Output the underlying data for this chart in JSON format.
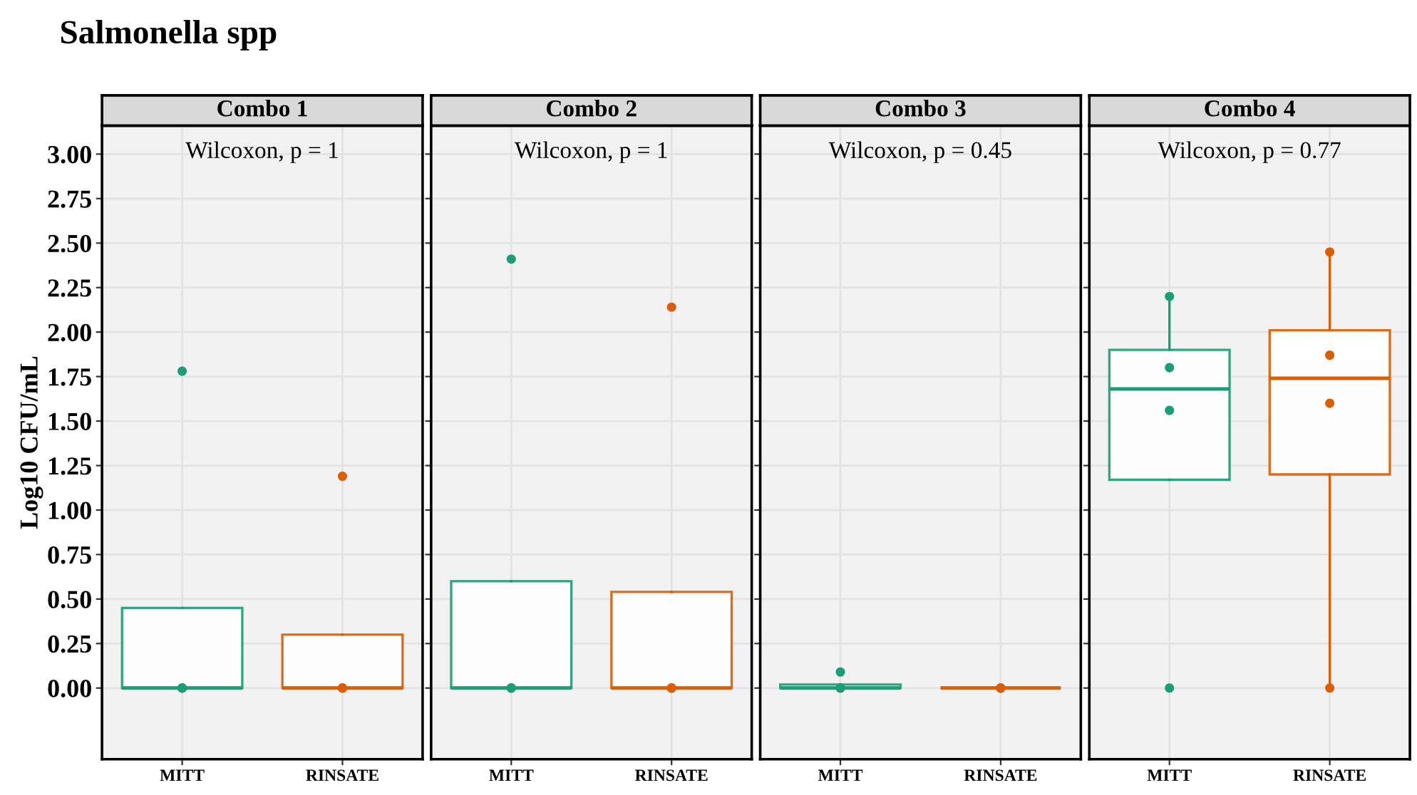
{
  "chart_data": [
    {
      "type": "box",
      "title": "Salmonella spp",
      "subtitle": "Combo 1",
      "ylabel": "Log10 CFU/mL",
      "annotations": [
        "Wilcoxon, p = 1"
      ],
      "categories": [
        "MITT",
        "RINSATE"
      ],
      "ylim": [
        -0.4,
        3.16
      ],
      "yticks": [
        {
          "value": 0,
          "label": "0.00"
        },
        {
          "value": 0.25,
          "label": "0.25"
        },
        {
          "value": 0.5,
          "label": "0.50"
        },
        {
          "value": 0.75,
          "label": "0.75"
        },
        {
          "value": 1,
          "label": "1.00"
        },
        {
          "value": 1.25,
          "label": "1.25"
        },
        {
          "value": 1.5,
          "label": "1.50"
        },
        {
          "value": 1.75,
          "label": "1.75"
        },
        {
          "value": 2,
          "label": "2.00"
        },
        {
          "value": 2.25,
          "label": "2.25"
        },
        {
          "value": 2.5,
          "label": "2.50"
        },
        {
          "value": 2.75,
          "label": "2.75"
        },
        {
          "value": 3,
          "label": "3.00"
        }
      ],
      "grid": true,
      "colors": [
        "#1b9e77",
        "#d95f02"
      ],
      "boxes": [
        {
          "low": 0,
          "q1": 0,
          "median": 0,
          "q3": 0.45,
          "high": 0.45
        },
        {
          "low": 0,
          "q1": 0,
          "median": 0,
          "q3": 0.3,
          "high": 0.3
        }
      ],
      "series": [
        {
          "type": "scatter",
          "color": "#1b9e77",
          "x": [
            "MITT",
            "MITT",
            "MITT",
            "MITT"
          ],
          "values": [
            0,
            0,
            0,
            1.78
          ]
        },
        {
          "type": "scatter",
          "color": "#d95f02",
          "x": [
            "RINSATE",
            "RINSATE",
            "RINSATE",
            "RINSATE"
          ],
          "values": [
            0,
            0,
            0,
            1.19
          ]
        }
      ]
    },
    {
      "type": "box",
      "subtitle": "Combo 2",
      "annotations": [
        "Wilcoxon, p = 1"
      ],
      "categories": [
        "MITT",
        "RINSATE"
      ],
      "ylim": [
        -0.4,
        3.16
      ],
      "tick_labels": "x",
      "grid": true,
      "colors": [
        "#1b9e77",
        "#d95f02"
      ],
      "boxes": [
        {
          "low": 0,
          "q1": 0,
          "median": 0,
          "q3": 0.6,
          "high": 0.6
        },
        {
          "low": 0,
          "q1": 0,
          "median": 0,
          "q3": 0.54,
          "high": 0.54
        }
      ],
      "series": [
        {
          "type": "scatter",
          "color": "#1b9e77",
          "x": [
            "MITT",
            "MITT",
            "MITT",
            "MITT"
          ],
          "values": [
            0,
            0,
            0,
            2.41
          ]
        },
        {
          "type": "scatter",
          "color": "#d95f02",
          "x": [
            "RINSATE",
            "RINSATE",
            "RINSATE",
            "RINSATE"
          ],
          "values": [
            0,
            0,
            0,
            2.14
          ]
        }
      ]
    },
    {
      "type": "box",
      "subtitle": "Combo 3",
      "annotations": [
        "Wilcoxon, p = 0.45"
      ],
      "categories": [
        "MITT",
        "RINSATE"
      ],
      "ylim": [
        -0.4,
        3.16
      ],
      "tick_labels": "x",
      "grid": true,
      "colors": [
        "#1b9e77",
        "#d95f02"
      ],
      "boxes": [
        {
          "low": 0,
          "q1": 0,
          "median": 0,
          "q3": 0.02,
          "high": 0.02
        },
        {
          "low": 0,
          "q1": 0,
          "median": 0,
          "q3": 0,
          "high": 0
        }
      ],
      "series": [
        {
          "type": "scatter",
          "color": "#1b9e77",
          "x": [
            "MITT",
            "MITT",
            "MITT",
            "MITT"
          ],
          "values": [
            0,
            0,
            0,
            0.09
          ]
        },
        {
          "type": "scatter",
          "color": "#d95f02",
          "x": [
            "RINSATE",
            "RINSATE",
            "RINSATE",
            "RINSATE"
          ],
          "values": [
            0,
            0,
            0,
            0
          ]
        }
      ]
    },
    {
      "type": "box",
      "subtitle": "Combo 4",
      "annotations": [
        "Wilcoxon, p = 0.77"
      ],
      "categories": [
        "MITT",
        "RINSATE"
      ],
      "ylim": [
        -0.4,
        3.16
      ],
      "tick_labels": "x",
      "grid": true,
      "colors": [
        "#1b9e77",
        "#d95f02"
      ],
      "boxes": [
        {
          "low": 1.17,
          "q1": 1.17,
          "median": 1.68,
          "q3": 1.9,
          "high": 2.2
        },
        {
          "low": 0,
          "q1": 1.2,
          "median": 1.74,
          "q3": 2.01,
          "high": 2.45
        }
      ],
      "series": [
        {
          "type": "scatter",
          "color": "#1b9e77",
          "x": [
            "MITT",
            "MITT",
            "MITT",
            "MITT"
          ],
          "values": [
            0,
            1.56,
            1.8,
            2.2
          ]
        },
        {
          "type": "scatter",
          "color": "#d95f02",
          "x": [
            "RINSATE",
            "RINSATE",
            "RINSATE",
            "RINSATE"
          ],
          "values": [
            0,
            1.6,
            1.87,
            2.45
          ]
        }
      ]
    }
  ]
}
